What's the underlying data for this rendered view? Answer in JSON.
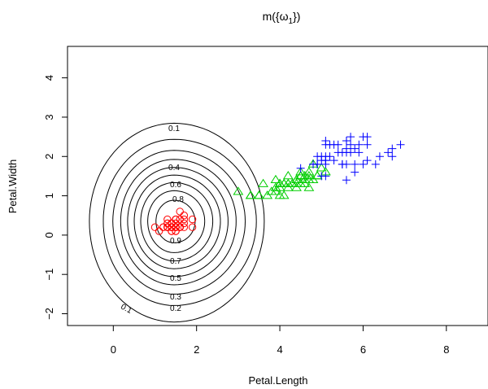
{
  "chart_data": {
    "type": "scatter",
    "title": "m({ω₁})",
    "title_main": "m({ω",
    "title_sub": "1",
    "title_tail": "})",
    "xlabel": "Petal.Length",
    "ylabel": "Petal.Width",
    "xlim": [
      -1.1,
      9.0
    ],
    "ylim": [
      -2.3,
      4.8
    ],
    "xticks": [
      0,
      2,
      4,
      6,
      8
    ],
    "yticks": [
      -2,
      -1,
      0,
      1,
      2,
      3,
      4
    ],
    "grid": false,
    "legend": "none",
    "contour": {
      "center": [
        1.46,
        0.25
      ],
      "levels": [
        0.1,
        0.2,
        0.3,
        0.4,
        0.5,
        0.6,
        0.7,
        0.8,
        0.9
      ],
      "visible_labels": [
        "0.1",
        "0.2",
        "0.3",
        "0.4",
        "0.5",
        "0.6",
        "0.7",
        "0.8",
        "0.9",
        "0.1"
      ],
      "color": "#000000"
    },
    "series": [
      {
        "marker": "circle",
        "color": "#ff0000",
        "points": [
          [
            1.4,
            0.2
          ],
          [
            1.4,
            0.2
          ],
          [
            1.3,
            0.2
          ],
          [
            1.5,
            0.2
          ],
          [
            1.4,
            0.2
          ],
          [
            1.7,
            0.4
          ],
          [
            1.4,
            0.3
          ],
          [
            1.5,
            0.2
          ],
          [
            1.4,
            0.2
          ],
          [
            1.5,
            0.1
          ],
          [
            1.5,
            0.2
          ],
          [
            1.6,
            0.2
          ],
          [
            1.4,
            0.1
          ],
          [
            1.1,
            0.1
          ],
          [
            1.2,
            0.2
          ],
          [
            1.5,
            0.4
          ],
          [
            1.3,
            0.4
          ],
          [
            1.4,
            0.3
          ],
          [
            1.7,
            0.3
          ],
          [
            1.5,
            0.3
          ],
          [
            1.7,
            0.2
          ],
          [
            1.5,
            0.4
          ],
          [
            1.0,
            0.2
          ],
          [
            1.7,
            0.5
          ],
          [
            1.9,
            0.2
          ],
          [
            1.6,
            0.2
          ],
          [
            1.6,
            0.4
          ],
          [
            1.5,
            0.2
          ],
          [
            1.4,
            0.2
          ],
          [
            1.6,
            0.2
          ],
          [
            1.6,
            0.2
          ],
          [
            1.5,
            0.4
          ],
          [
            1.5,
            0.1
          ],
          [
            1.4,
            0.2
          ],
          [
            1.5,
            0.2
          ],
          [
            1.2,
            0.2
          ],
          [
            1.3,
            0.2
          ],
          [
            1.4,
            0.1
          ],
          [
            1.3,
            0.2
          ],
          [
            1.5,
            0.2
          ],
          [
            1.3,
            0.3
          ],
          [
            1.3,
            0.3
          ],
          [
            1.3,
            0.2
          ],
          [
            1.6,
            0.6
          ],
          [
            1.9,
            0.4
          ],
          [
            1.4,
            0.3
          ],
          [
            1.6,
            0.2
          ],
          [
            1.4,
            0.2
          ],
          [
            1.5,
            0.2
          ],
          [
            1.4,
            0.2
          ]
        ]
      },
      {
        "marker": "triangle",
        "color": "#00cd00",
        "points": [
          [
            4.7,
            1.4
          ],
          [
            4.5,
            1.5
          ],
          [
            4.9,
            1.5
          ],
          [
            4.0,
            1.3
          ],
          [
            4.6,
            1.5
          ],
          [
            4.5,
            1.3
          ],
          [
            4.7,
            1.6
          ],
          [
            3.3,
            1.0
          ],
          [
            4.6,
            1.3
          ],
          [
            3.9,
            1.4
          ],
          [
            3.5,
            1.0
          ],
          [
            4.2,
            1.5
          ],
          [
            4.0,
            1.0
          ],
          [
            4.7,
            1.4
          ],
          [
            3.6,
            1.3
          ],
          [
            4.4,
            1.4
          ],
          [
            4.5,
            1.5
          ],
          [
            4.1,
            1.0
          ],
          [
            4.5,
            1.5
          ],
          [
            3.9,
            1.1
          ],
          [
            4.8,
            1.8
          ],
          [
            4.0,
            1.3
          ],
          [
            4.9,
            1.5
          ],
          [
            4.7,
            1.2
          ],
          [
            4.3,
            1.3
          ],
          [
            4.4,
            1.4
          ],
          [
            4.8,
            1.4
          ],
          [
            5.0,
            1.7
          ],
          [
            4.5,
            1.5
          ],
          [
            3.5,
            1.0
          ],
          [
            3.8,
            1.1
          ],
          [
            3.7,
            1.0
          ],
          [
            3.9,
            1.2
          ],
          [
            5.1,
            1.6
          ],
          [
            4.5,
            1.5
          ],
          [
            4.5,
            1.6
          ],
          [
            4.7,
            1.5
          ],
          [
            4.4,
            1.3
          ],
          [
            4.1,
            1.3
          ],
          [
            4.0,
            1.3
          ],
          [
            4.4,
            1.2
          ],
          [
            4.6,
            1.4
          ],
          [
            4.0,
            1.2
          ],
          [
            3.3,
            1.0
          ],
          [
            4.2,
            1.3
          ],
          [
            4.2,
            1.2
          ],
          [
            4.2,
            1.3
          ],
          [
            4.3,
            1.3
          ],
          [
            3.0,
            1.1
          ],
          [
            4.1,
            1.3
          ]
        ]
      },
      {
        "marker": "plus",
        "color": "#0000ff",
        "points": [
          [
            6.0,
            2.5
          ],
          [
            5.1,
            1.9
          ],
          [
            5.9,
            2.1
          ],
          [
            5.6,
            1.8
          ],
          [
            5.8,
            2.2
          ],
          [
            6.6,
            2.1
          ],
          [
            4.5,
            1.7
          ],
          [
            6.3,
            1.8
          ],
          [
            5.8,
            1.8
          ],
          [
            6.1,
            2.5
          ],
          [
            5.1,
            2.0
          ],
          [
            5.3,
            1.9
          ],
          [
            5.5,
            2.1
          ],
          [
            5.0,
            2.0
          ],
          [
            5.1,
            2.4
          ],
          [
            5.3,
            2.3
          ],
          [
            5.5,
            1.8
          ],
          [
            6.7,
            2.2
          ],
          [
            6.9,
            2.3
          ],
          [
            5.0,
            1.5
          ],
          [
            5.7,
            2.3
          ],
          [
            4.9,
            2.0
          ],
          [
            6.7,
            2.0
          ],
          [
            4.9,
            1.8
          ],
          [
            5.7,
            2.1
          ],
          [
            6.0,
            1.8
          ],
          [
            4.8,
            1.8
          ],
          [
            4.9,
            1.8
          ],
          [
            5.6,
            2.1
          ],
          [
            5.8,
            1.6
          ],
          [
            6.1,
            1.9
          ],
          [
            6.4,
            2.0
          ],
          [
            5.6,
            2.2
          ],
          [
            5.1,
            1.5
          ],
          [
            5.6,
            1.4
          ],
          [
            6.1,
            2.3
          ],
          [
            5.6,
            2.4
          ],
          [
            5.5,
            1.8
          ],
          [
            4.8,
            1.8
          ],
          [
            5.4,
            2.1
          ],
          [
            5.6,
            2.4
          ],
          [
            5.1,
            2.3
          ],
          [
            5.1,
            1.9
          ],
          [
            5.9,
            2.3
          ],
          [
            5.7,
            2.5
          ],
          [
            5.2,
            2.3
          ],
          [
            5.0,
            1.9
          ],
          [
            5.2,
            2.0
          ],
          [
            5.4,
            2.3
          ],
          [
            5.1,
            1.8
          ]
        ]
      }
    ]
  }
}
